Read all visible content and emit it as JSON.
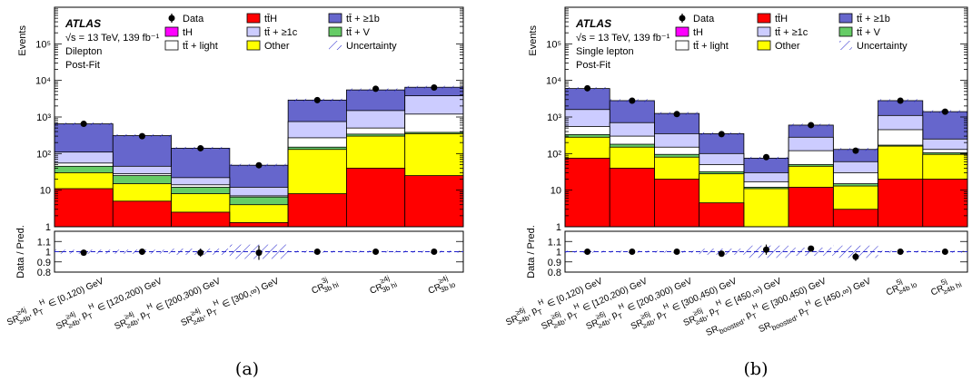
{
  "colors": {
    "ttH": "#ff0000",
    "tH": "#ff00ff",
    "light": "#ffffff",
    "ge1c": "#ccccff",
    "V": "#66cc66",
    "Other": "#ffff00",
    "ge1b": "#6666cc",
    "uncertainty": "#2222cc"
  },
  "icons": {
    "data_marker": "filled-circle",
    "uncertainty_marker": "hatched-box"
  },
  "chart_data": [
    {
      "type": "bar",
      "stacked": true,
      "caption": "(a)",
      "experiment": "ATLAS",
      "energy_text": "√s = 13 TeV, 139 fb⁻¹",
      "channel": "Dilepton",
      "stage": "Post-Fit",
      "ylabel": "Events",
      "ratio_ylabel": "Data / Pred.",
      "yscale": "log",
      "ylim": [
        1,
        1000000
      ],
      "y_ticks": [
        "1",
        "10",
        "10²",
        "10³",
        "10⁴",
        "10⁵"
      ],
      "ratio_ylim": [
        0.8,
        1.2
      ],
      "ratio_ticks": [
        "0.8",
        "0.9",
        "1",
        "1.1"
      ],
      "legend": [
        "Data",
        "tt̄H",
        "tt̄ + ≥1b",
        "tH",
        "tt̄ + ≥1c",
        "tt̄ + V",
        "tt̄ + light",
        "Other",
        "Uncertainty"
      ],
      "categories": [
        "SR^{≥4j}_{≥4b}, p_T^H ∈ [0,120) GeV",
        "SR^{≥4j}_{≥4b}, p_T^H ∈ [120,200) GeV",
        "SR^{≥4j}_{≥4b}, p_T^H ∈ [200,300) GeV",
        "SR^{≥4j}_{≥4b}, p_T^H ∈ [300,∞) GeV",
        "CR^{3j}_{3b hi}",
        "CR^{≥4j}_{3b hi}",
        "CR^{≥4j}_{3b lo}"
      ],
      "series": [
        {
          "name": "tt̄H",
          "values": [
            11,
            5,
            2.5,
            1.3,
            8,
            40,
            25
          ]
        },
        {
          "name": "Other",
          "values": [
            30,
            15,
            8,
            4,
            130,
            300,
            350
          ]
        },
        {
          "name": "tt̄ + V",
          "values": [
            45,
            25,
            12,
            6.5,
            150,
            340,
            380
          ]
        },
        {
          "name": "tt̄ + light",
          "values": [
            55,
            28,
            14,
            7,
            270,
            500,
            1200
          ]
        },
        {
          "name": "tt̄ + ≥1c",
          "values": [
            110,
            45,
            22,
            12,
            750,
            1500,
            3800
          ]
        },
        {
          "name": "tt̄ + ≥1b",
          "values": [
            650,
            310,
            140,
            48,
            2900,
            5500,
            6500
          ]
        }
      ],
      "data": [
        650,
        300,
        140,
        48,
        2900,
        5900,
        6400
      ],
      "ratio": [
        0.99,
        1.0,
        0.99,
        0.99,
        1.0,
        1.0,
        1.0
      ],
      "ratio_err": [
        0.02,
        0.03,
        0.04,
        0.07,
        0.005,
        0.005,
        0.005
      ],
      "band": [
        0.02,
        0.02,
        0.03,
        0.07,
        0.01,
        0.01,
        0.01
      ]
    },
    {
      "type": "bar",
      "stacked": true,
      "caption": "(b)",
      "experiment": "ATLAS",
      "energy_text": "√s = 13 TeV, 139 fb⁻¹",
      "channel": "Single lepton",
      "stage": "Post-Fit",
      "ylabel": "Events",
      "ratio_ylabel": "Data / Pred.",
      "yscale": "log",
      "ylim": [
        1,
        1000000
      ],
      "y_ticks": [
        "1",
        "10",
        "10²",
        "10³",
        "10⁴",
        "10⁵"
      ],
      "ratio_ylim": [
        0.8,
        1.2
      ],
      "ratio_ticks": [
        "0.8",
        "0.9",
        "1",
        "1.1"
      ],
      "legend": [
        "Data",
        "tt̄H",
        "tt̄ + ≥1b",
        "tH",
        "tt̄ + ≥1c",
        "tt̄ + V",
        "tt̄ + light",
        "Other",
        "Uncertainty"
      ],
      "categories": [
        "SR^{≥6j}_{≥4b}, p_T^H ∈ [0,120) GeV",
        "SR^{≥6j}_{≥4b}, p_T^H ∈ [120,200) GeV",
        "SR^{≥6j}_{≥4b}, p_T^H ∈ [200,300) GeV",
        "SR^{≥6j}_{≥4b}, p_T^H ∈ [300,450) GeV",
        "SR^{≥6j}_{≥4b}, p_T^H ∈ [450,∞) GeV",
        "SR_{boosted}, p_T^H ∈ [300,450) GeV",
        "SR_{boosted}, p_T^H ∈ [450,∞) GeV",
        "CR^{5j}_{≥4b lo}",
        "CR^{5j}_{≥4b hi}"
      ],
      "series": [
        {
          "name": "tt̄H",
          "values": [
            75,
            40,
            20,
            4.5,
            1.0,
            12,
            3,
            20,
            20
          ]
        },
        {
          "name": "Other",
          "values": [
            280,
            150,
            80,
            28,
            11,
            45,
            13,
            160,
            95
          ]
        },
        {
          "name": "tt̄ + V",
          "values": [
            330,
            180,
            95,
            32,
            12,
            50,
            15,
            170,
            105
          ]
        },
        {
          "name": "tt̄ + light",
          "values": [
            550,
            300,
            150,
            50,
            17,
            120,
            30,
            450,
            130
          ]
        },
        {
          "name": "tt̄ + ≥1c",
          "values": [
            1600,
            700,
            350,
            100,
            30,
            280,
            60,
            1100,
            250
          ]
        },
        {
          "name": "tt̄ + ≥1b",
          "values": [
            6000,
            2800,
            1250,
            350,
            75,
            600,
            130,
            2800,
            1400
          ]
        }
      ],
      "data": [
        6100,
        2800,
        1200,
        340,
        80,
        600,
        120,
        2800,
        1400
      ],
      "ratio": [
        1.0,
        1.0,
        1.0,
        0.98,
        1.02,
        1.03,
        0.95,
        1.0,
        1.0
      ],
      "ratio_err": [
        0.005,
        0.005,
        0.01,
        0.02,
        0.05,
        0.02,
        0.04,
        0.005,
        0.005
      ],
      "band": [
        0.01,
        0.01,
        0.01,
        0.03,
        0.06,
        0.04,
        0.06,
        0.01,
        0.01
      ]
    }
  ]
}
